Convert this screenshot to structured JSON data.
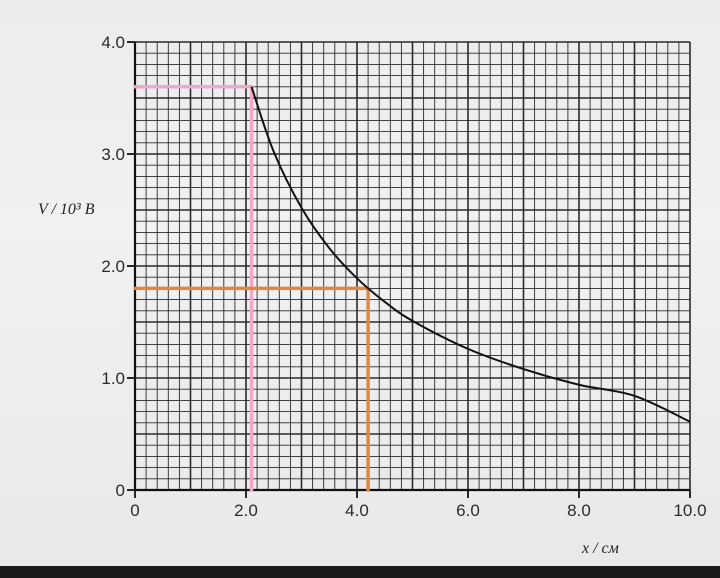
{
  "chart_data": {
    "type": "line",
    "title": "",
    "xlabel": "x / см",
    "ylabel": "V / 10³ В",
    "xlim": [
      0,
      10.0
    ],
    "ylim": [
      0,
      4.0
    ],
    "grid": true,
    "x_ticks": [
      "0",
      "2.0",
      "4.0",
      "6.0",
      "8.0",
      "10.0"
    ],
    "y_ticks": [
      "0",
      "1.0",
      "2.0",
      "3.0",
      "4.0"
    ],
    "x_tick_values": [
      0,
      2,
      4,
      6,
      8,
      10
    ],
    "y_tick_values": [
      0,
      1,
      2,
      3,
      4
    ],
    "series": [
      {
        "x": [
          2.1,
          2.5,
          3.0,
          3.5,
          4.0,
          4.5,
          5.0,
          6.0,
          7.0,
          8.0,
          9.0,
          10.0
        ],
        "y": [
          3.6,
          3.02,
          2.52,
          2.16,
          1.89,
          1.68,
          1.51,
          1.26,
          1.08,
          0.94,
          0.84,
          0.61
        ]
      }
    ],
    "annotations": [
      {
        "type": "reading-lines",
        "color": "#f2a6c8",
        "x": 2.1,
        "y": 3.6
      },
      {
        "type": "reading-lines",
        "color": "#d98a4a",
        "x": 4.2,
        "y": 1.8
      }
    ]
  }
}
